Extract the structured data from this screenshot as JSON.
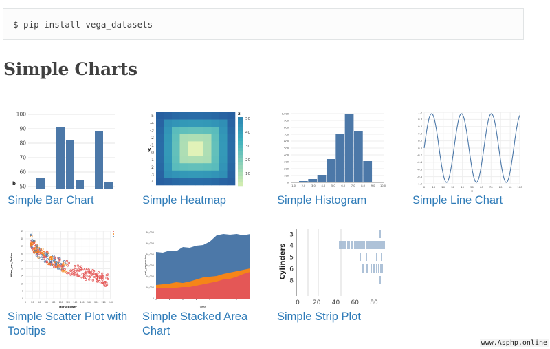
{
  "install": {
    "command": "$ pip install vega_datasets"
  },
  "section": {
    "title": "Simple Charts"
  },
  "gallery": {
    "items": [
      {
        "label": "Simple Bar Chart"
      },
      {
        "label": "Simple Heatmap"
      },
      {
        "label": "Simple Histogram"
      },
      {
        "label": "Simple Line Chart"
      },
      {
        "label": "Simple Scatter Plot with Tooltips"
      },
      {
        "label": "Simple Stacked Area Chart"
      },
      {
        "label": "Simple Strip Plot"
      }
    ]
  },
  "thumbnails": {
    "bar": {
      "yticks": [
        "100",
        "90",
        "80",
        "70",
        "60",
        "50"
      ],
      "ylabel": "b"
    },
    "heatmap": {
      "yticks": [
        "-5",
        "-4",
        "-3",
        "-2",
        "-1",
        "0",
        "1",
        "2",
        "3",
        "4"
      ],
      "ylabel": "y",
      "legend_title": "z",
      "legend_ticks": [
        "50",
        "40",
        "30",
        "20",
        "10"
      ]
    },
    "histogram": {
      "yticks": [
        "1,000",
        "900",
        "800",
        "700",
        "600",
        "500",
        "400",
        "300",
        "200",
        "100",
        "0"
      ],
      "xticks": [
        "1.0",
        "2.0",
        "3.0",
        "4.0",
        "5.0",
        "6.0",
        "7.0",
        "8.0",
        "9.0",
        "10.0"
      ]
    },
    "line": {
      "yticks": [
        "1.0",
        "0.8",
        "0.6",
        "0.4",
        "0.2",
        "0.0",
        "-0.2",
        "-0.4",
        "-0.6",
        "-0.8",
        "-1.0"
      ],
      "xticks": [
        "0",
        "10",
        "20",
        "30",
        "40",
        "50",
        "60",
        "70",
        "80",
        "90",
        "100"
      ],
      "xlabel": "x"
    },
    "scatter": {
      "ylabel": "Miles_per_Gallon",
      "xlabel": "Horsepower",
      "yticks": [
        "45",
        "40",
        "35",
        "30",
        "25",
        "20",
        "15",
        "10",
        "5",
        "0"
      ],
      "xticks": [
        "0",
        "20",
        "40",
        "60",
        "80",
        "100",
        "120",
        "140",
        "160",
        "180",
        "200",
        "220",
        "240"
      ]
    },
    "area": {
      "ylabel": "net_generation",
      "xlabel": "year",
      "yticks": [
        "60,000",
        "50,000",
        "40,000",
        "30,000",
        "20,000",
        "10,000",
        "0"
      ]
    },
    "strip": {
      "ylabel": "Cylinders",
      "yticks": [
        "3",
        "4",
        "5",
        "6",
        "8"
      ],
      "xticks": [
        "0",
        "20",
        "40",
        "60",
        "80"
      ]
    }
  },
  "watermark": "www.Asphp.online",
  "colors": {
    "link": "#2e7bb8",
    "bar": "#4c78a8",
    "area_orange": "#f58518",
    "area_red": "#e45756"
  }
}
